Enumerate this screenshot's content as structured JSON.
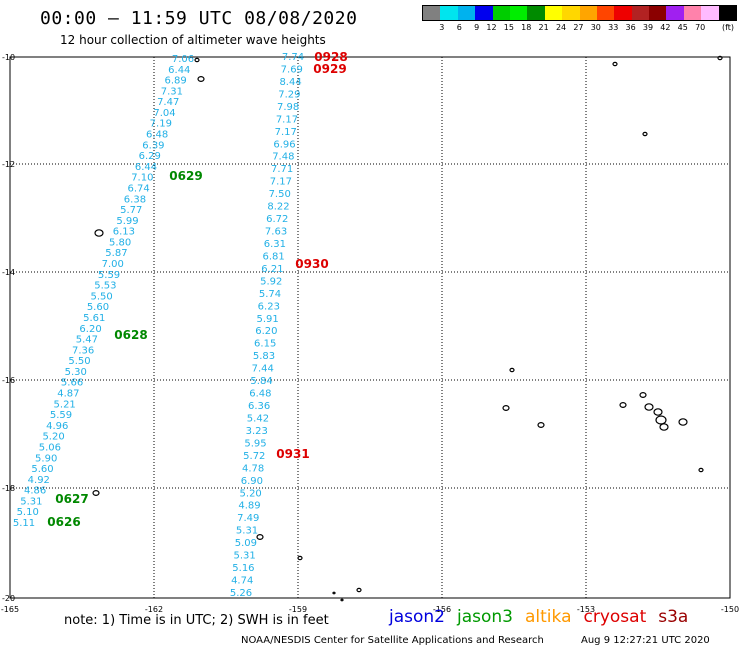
{
  "header": {
    "title": "00:00 – 11:59 UTC 08/08/2020",
    "subtitle": "12 hour collection of altimeter wave heights"
  },
  "legend": {
    "colors": [
      "#808080",
      "#00e5ee",
      "#00b2ee",
      "#0000ee",
      "#00cd00",
      "#00ee00",
      "#008b00",
      "#ffff00",
      "#ffd700",
      "#ffa500",
      "#ff4500",
      "#ee0000",
      "#b22222",
      "#8b0000",
      "#a020f0",
      "#ff82ab",
      "#ffbbff",
      "#000000"
    ],
    "labels": [
      "3",
      "6",
      "9",
      "12",
      "15",
      "18",
      "21",
      "24",
      "27",
      "30",
      "33",
      "36",
      "39",
      "42",
      "45",
      "70"
    ],
    "unit": "(ft)"
  },
  "axes": {
    "lat_labels": [
      "-10",
      "-12",
      "-14",
      "-16",
      "-18",
      "-20"
    ],
    "lon_labels": [
      "-165",
      "-162",
      "-159",
      "-156",
      "-153",
      "-150"
    ]
  },
  "track_a": {
    "values": [
      "7.06",
      "6.44",
      "6.89",
      "7.31",
      "7.47",
      "7.04",
      "7.19",
      "6.48",
      "6.39",
      "6.29",
      "6.44",
      "7.10",
      "6.74",
      "6.38",
      "5.77",
      "5.99",
      "6.13",
      "5.80",
      "5.87",
      "7.00",
      "5.59",
      "5.53",
      "5.50",
      "5.60",
      "5.61",
      "6.20",
      "5.47",
      "7.36",
      "5.50",
      "5.30",
      "5.66",
      "4.87",
      "5.21",
      "5.59",
      "4.96",
      "5.20",
      "5.06",
      "5.90",
      "5.60",
      "4.92",
      "4.86",
      "5.31",
      "5.10",
      "5.11"
    ],
    "times": [
      {
        "label": "0629",
        "color": "#008800"
      },
      {
        "label": "0628",
        "color": "#008800"
      },
      {
        "label": "0627",
        "color": "#008800"
      },
      {
        "label": "0626",
        "color": "#008800"
      }
    ]
  },
  "track_b": {
    "values": [
      "7.74",
      "7.69",
      "8.44",
      "7.29",
      "7.98",
      "7.17",
      "7.17",
      "6.96",
      "7.48",
      "7.71",
      "7.17",
      "7.50",
      "8.22",
      "6.72",
      "7.63",
      "6.31",
      "6.81",
      "6.21",
      "5.92",
      "5.74",
      "6.23",
      "5.91",
      "6.20",
      "6.15",
      "5.83",
      "7.44",
      "5.84",
      "6.48",
      "6.36",
      "5.42",
      "3.23",
      "5.95",
      "5.72",
      "4.78",
      "6.90",
      "5.20",
      "4.89",
      "7.49",
      "5.31",
      "5.09",
      "5.31",
      "5.16",
      "4.74",
      "5.26"
    ],
    "times": [
      {
        "label": "0928",
        "color": "#dd0000"
      },
      {
        "label": "0929",
        "color": "#dd0000"
      },
      {
        "label": "0930",
        "color": "#dd0000"
      },
      {
        "label": "0931",
        "color": "#dd0000"
      }
    ]
  },
  "footer": {
    "note": "note: 1) Time is in UTC; 2) SWH is in feet",
    "satellites": [
      {
        "name": "jason2",
        "color": "#0000dd"
      },
      {
        "name": "jason3",
        "color": "#009900"
      },
      {
        "name": "altika",
        "color": "#ff9900"
      },
      {
        "name": "cryosat",
        "color": "#dd0000"
      },
      {
        "name": "s3a",
        "color": "#990000"
      }
    ],
    "credit": "NOAA/NESDIS Center for Satellite Applications and Research",
    "generated": "Aug  9 12:27:21 UTC 2020"
  }
}
